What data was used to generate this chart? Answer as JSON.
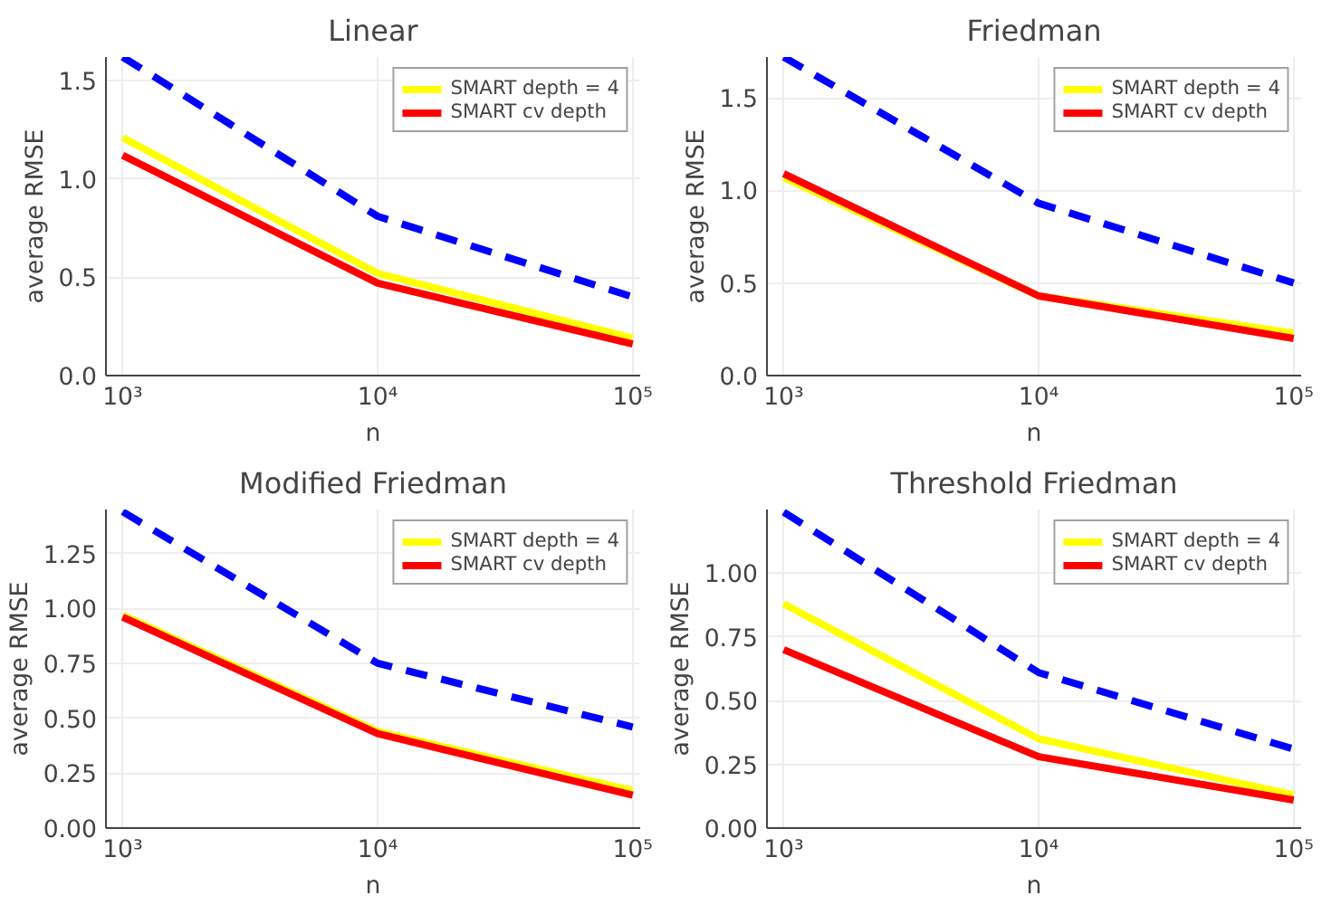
{
  "chart_data": [
    {
      "type": "line",
      "title": "Linear",
      "xlabel": "n",
      "ylabel": "average RMSE",
      "x": [
        1000,
        10000,
        100000
      ],
      "log": "x",
      "xlim": [
        860,
        107000
      ],
      "xticks": [
        {
          "value": 1000,
          "label": "10³"
        },
        {
          "value": 10000,
          "label": "10⁴"
        },
        {
          "value": 100000,
          "label": "10⁵"
        }
      ],
      "ylim": [
        0,
        1.62
      ],
      "yticks": [
        {
          "value": 0,
          "label": "0.0"
        },
        0.5,
        {
          "value": 1,
          "label": "1.0"
        },
        1.5
      ],
      "grid": true,
      "legend": "top right",
      "marker": "none",
      "series": [
        {
          "name": "SMART depth = 4",
          "color": "#ffff00",
          "values": [
            1.21,
            0.52,
            0.19
          ],
          "line_style": "solid"
        },
        {
          "name": "SMART cv depth",
          "color": "#ff0000",
          "values": [
            1.12,
            0.47,
            0.16
          ],
          "line_style": "solid"
        },
        {
          "color": "#0000ff",
          "values": [
            1.62,
            0.81,
            0.4
          ],
          "line_style": "dashed"
        }
      ]
    },
    {
      "type": "line",
      "title": "Friedman",
      "xlabel": "n",
      "ylabel": "average RMSE",
      "x": [
        1000,
        10000,
        100000
      ],
      "log": "x",
      "xlim": [
        860,
        107000
      ],
      "xticks": [
        {
          "value": 1000,
          "label": "10³"
        },
        {
          "value": 10000,
          "label": "10⁴"
        },
        {
          "value": 100000,
          "label": "10⁵"
        }
      ],
      "ylim": [
        0,
        1.72
      ],
      "yticks": [
        {
          "value": 0,
          "label": "0.0"
        },
        0.5,
        {
          "value": 1,
          "label": "1.0"
        },
        1.5
      ],
      "grid": true,
      "legend": "top right",
      "marker": "none",
      "series": [
        {
          "name": "SMART depth = 4",
          "color": "#ffff00",
          "values": [
            1.07,
            0.43,
            0.23
          ],
          "line_style": "solid"
        },
        {
          "name": "SMART cv depth",
          "color": "#ff0000",
          "values": [
            1.09,
            0.43,
            0.2
          ],
          "line_style": "solid"
        },
        {
          "color": "#0000ff",
          "values": [
            1.72,
            0.93,
            0.5
          ],
          "line_style": "dashed"
        }
      ]
    },
    {
      "type": "line",
      "title": "Modified Friedman",
      "xlabel": "n",
      "ylabel": "average RMSE",
      "x": [
        1000,
        10000,
        100000
      ],
      "log": "x",
      "xlim": [
        860,
        107000
      ],
      "xticks": [
        {
          "value": 1000,
          "label": "10³"
        },
        {
          "value": 10000,
          "label": "10⁴"
        },
        {
          "value": 100000,
          "label": "10⁵"
        }
      ],
      "ylim": [
        0,
        1.45
      ],
      "yticks": [
        {
          "value": 0,
          "label": "0.00"
        },
        0.25,
        {
          "value": 0.5,
          "label": "0.50"
        },
        0.75,
        {
          "value": 1,
          "label": "1.00"
        },
        1.25
      ],
      "grid": true,
      "legend": "top right",
      "marker": "none",
      "series": [
        {
          "name": "SMART depth = 4",
          "color": "#ffff00",
          "values": [
            0.97,
            0.44,
            0.17
          ],
          "line_style": "solid"
        },
        {
          "name": "SMART cv depth",
          "color": "#ff0000",
          "values": [
            0.96,
            0.43,
            0.15
          ],
          "line_style": "solid"
        },
        {
          "color": "#0000ff",
          "values": [
            1.44,
            0.75,
            0.46
          ],
          "line_style": "dashed"
        }
      ]
    },
    {
      "type": "line",
      "title": "Threshold Friedman",
      "xlabel": "n",
      "ylabel": "average RMSE",
      "x": [
        1000,
        10000,
        100000
      ],
      "log": "x",
      "xlim": [
        860,
        107000
      ],
      "xticks": [
        {
          "value": 1000,
          "label": "10³"
        },
        {
          "value": 10000,
          "label": "10⁴"
        },
        {
          "value": 100000,
          "label": "10⁵"
        }
      ],
      "ylim": [
        0,
        1.25
      ],
      "yticks": [
        {
          "value": 0,
          "label": "0.00"
        },
        0.25,
        {
          "value": 0.5,
          "label": "0.50"
        },
        0.75,
        {
          "value": 1,
          "label": "1.00"
        }
      ],
      "grid": true,
      "legend": "top right",
      "marker": "none",
      "series": [
        {
          "name": "SMART depth = 4",
          "color": "#ffff00",
          "values": [
            0.88,
            0.35,
            0.13
          ],
          "line_style": "solid"
        },
        {
          "name": "SMART cv depth",
          "color": "#ff0000",
          "values": [
            0.7,
            0.28,
            0.11
          ],
          "line_style": "solid"
        },
        {
          "color": "#0000ff",
          "values": [
            1.24,
            0.61,
            0.31
          ],
          "line_style": "dashed"
        }
      ]
    }
  ]
}
